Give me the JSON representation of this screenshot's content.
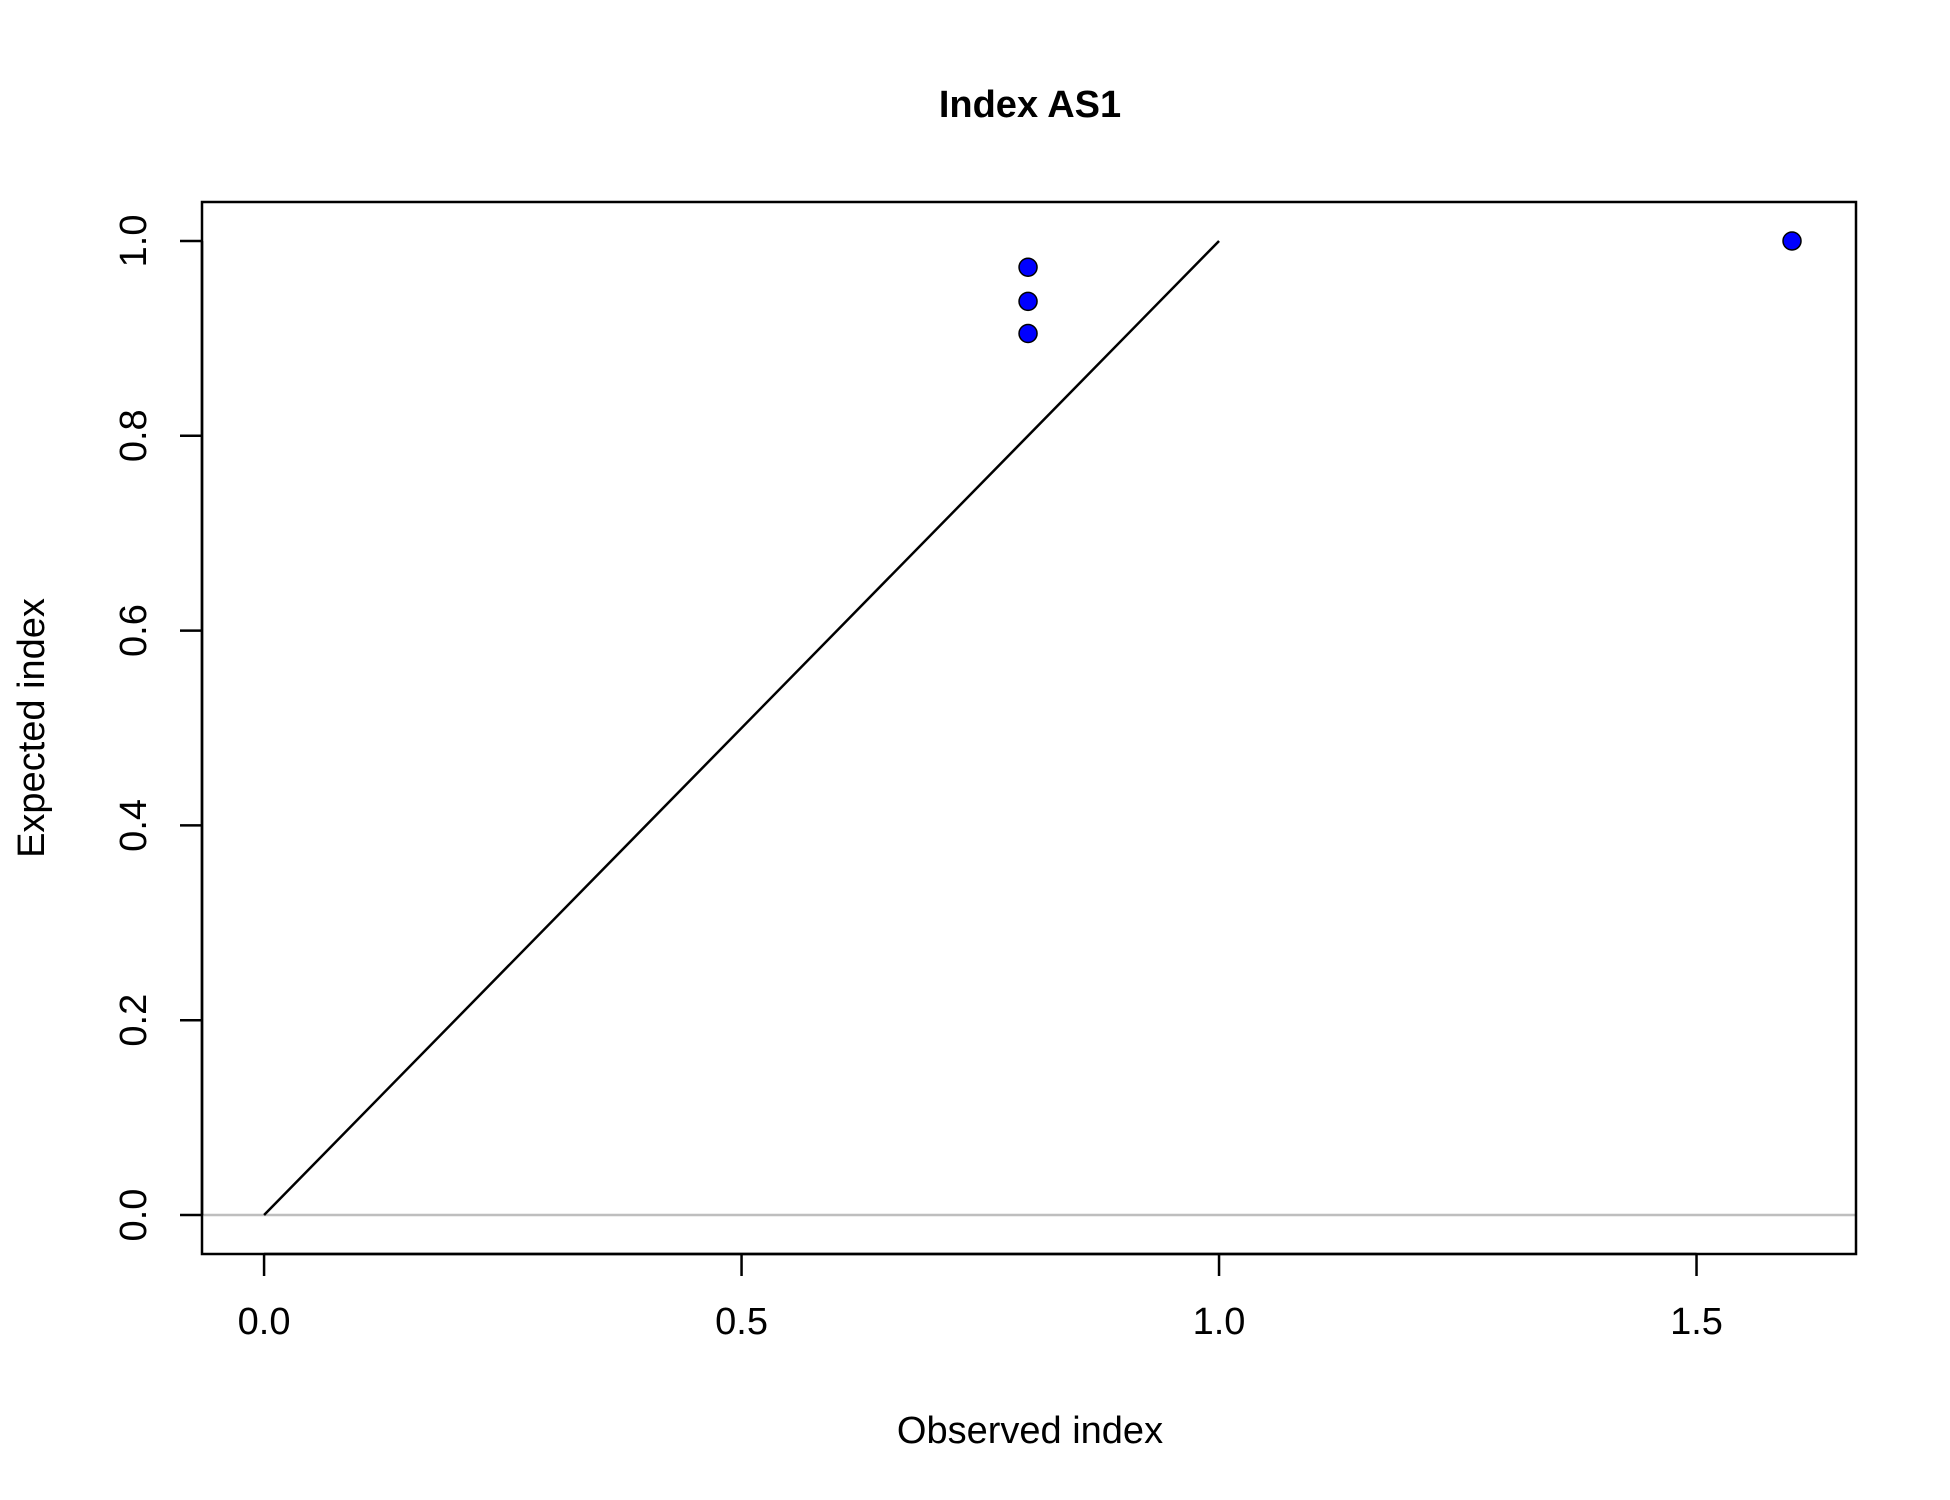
{
  "chart_data": {
    "type": "scatter",
    "title": "Index AS1",
    "xlabel": "Observed index",
    "ylabel": "Expected index",
    "xlim": [
      -0.065,
      1.667
    ],
    "ylim": [
      -0.04,
      1.04
    ],
    "x_ticks": [
      0.0,
      0.5,
      1.0,
      1.5
    ],
    "y_ticks": [
      0.0,
      0.2,
      0.4,
      0.6,
      0.8,
      1.0
    ],
    "x_tick_labels": [
      "0.0",
      "0.5",
      "1.0",
      "1.5"
    ],
    "y_tick_labels": [
      "0.0",
      "0.2",
      "0.4",
      "0.6",
      "0.8",
      "1.0"
    ],
    "points": [
      {
        "x": 0.8,
        "y": 0.973
      },
      {
        "x": 0.8,
        "y": 0.938
      },
      {
        "x": 0.8,
        "y": 0.905
      },
      {
        "x": 1.6,
        "y": 1.0
      }
    ],
    "reference_line": {
      "x": [
        0,
        1
      ],
      "y": [
        0,
        1
      ],
      "color": "#000000"
    },
    "horizontal_line": {
      "y": 0,
      "color": "#bebebe"
    },
    "point_color": "#0000ff",
    "point_edge_color": "#000000",
    "grid": false,
    "legend": "none"
  }
}
